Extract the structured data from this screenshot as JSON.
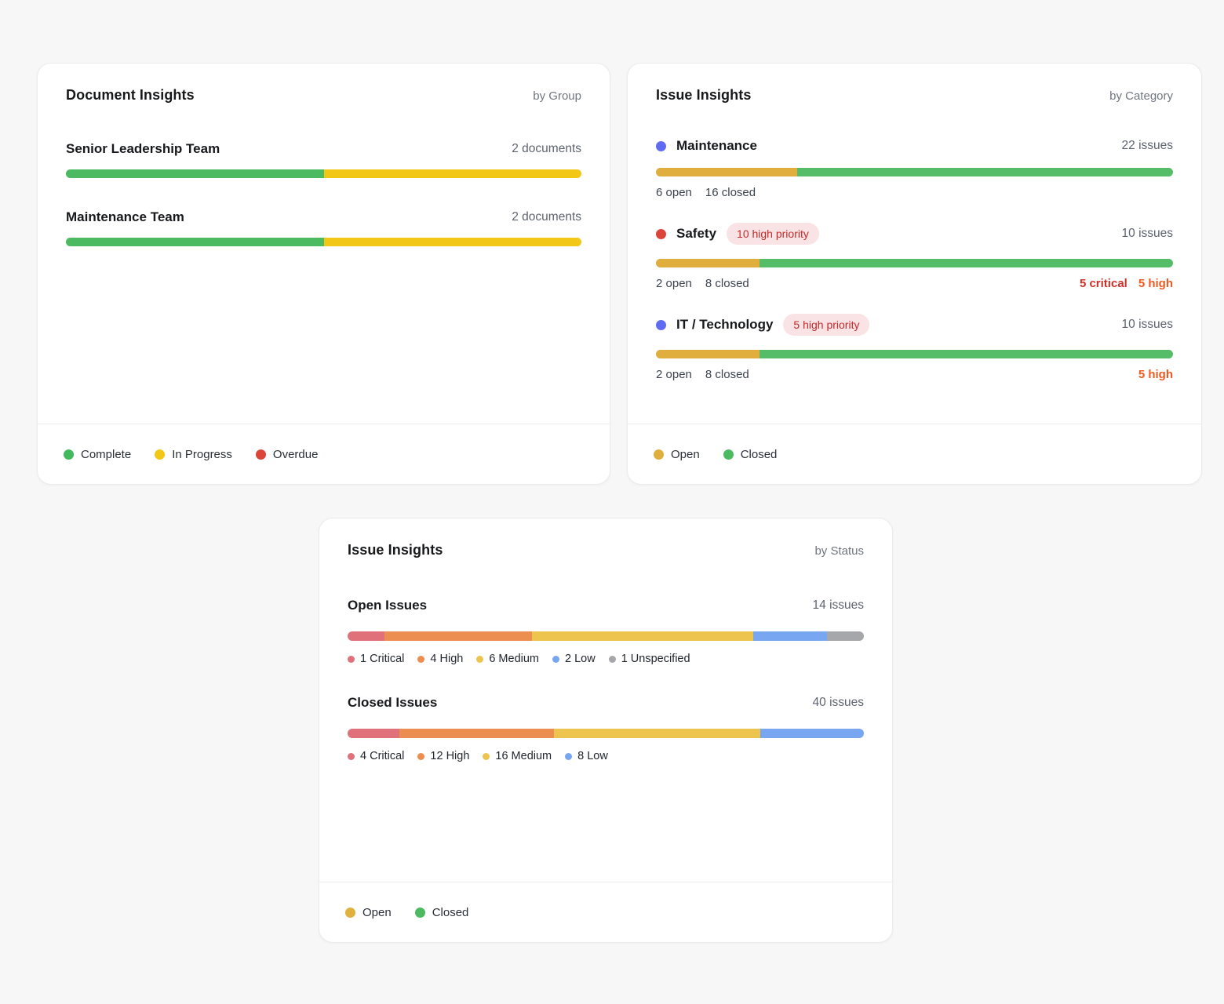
{
  "doc_card": {
    "title": "Document Insights",
    "subtitle": "by Group",
    "rows": [
      {
        "name": "Senior Leadership Team",
        "count": "2 documents",
        "segments": [
          {
            "label": "Complete",
            "color": "#4bba60",
            "pct": 50
          },
          {
            "label": "In Progress",
            "color": "#f2c716",
            "pct": 50
          }
        ]
      },
      {
        "name": "Maintenance Team",
        "count": "2 documents",
        "segments": [
          {
            "label": "Complete",
            "color": "#4bba60",
            "pct": 50
          },
          {
            "label": "In Progress",
            "color": "#f2c716",
            "pct": 50
          }
        ]
      }
    ],
    "legend": [
      {
        "label": "Complete",
        "color": "#41b95c"
      },
      {
        "label": "In Progress",
        "color": "#f2c716"
      },
      {
        "label": "Overdue",
        "color": "#da453a"
      }
    ]
  },
  "category_card": {
    "title": "Issue Insights",
    "subtitle": "by Category",
    "rows": [
      {
        "dot_color": "#5f6cf1",
        "name": "Maintenance",
        "badge": "",
        "count": "22 issues",
        "segments": [
          {
            "label": "Open",
            "color": "#dfae3d",
            "pct": 27.3
          },
          {
            "label": "Closed",
            "color": "#55bd68",
            "pct": 72.7
          }
        ],
        "stats_left": [
          "6 open",
          "16 closed"
        ],
        "stats_right": []
      },
      {
        "dot_color": "#da453a",
        "name": "Safety",
        "badge": "10 high priority",
        "count": "10 issues",
        "segments": [
          {
            "label": "Open",
            "color": "#dfae3d",
            "pct": 20
          },
          {
            "label": "Closed",
            "color": "#55bd68",
            "pct": 80
          }
        ],
        "stats_left": [
          "2 open",
          "8 closed"
        ],
        "stats_right": [
          {
            "text": "5 critical",
            "color": "#d12e28"
          },
          {
            "text": "5 high",
            "color": "#ee5a21"
          }
        ]
      },
      {
        "dot_color": "#5f6cf1",
        "name": "IT / Technology",
        "badge": "5 high priority",
        "count": "10 issues",
        "segments": [
          {
            "label": "Open",
            "color": "#dfae3d",
            "pct": 20
          },
          {
            "label": "Closed",
            "color": "#55bd68",
            "pct": 80
          }
        ],
        "stats_left": [
          "2 open",
          "8 closed"
        ],
        "stats_right": [
          {
            "text": "5 high",
            "color": "#ee5a21"
          }
        ]
      }
    ],
    "legend": [
      {
        "label": "Open",
        "color": "#dfae3d"
      },
      {
        "label": "Closed",
        "color": "#4bba60"
      }
    ]
  },
  "status_card": {
    "title": "Issue Insights",
    "subtitle": "by Status",
    "rows": [
      {
        "name": "Open Issues",
        "count": "14 issues",
        "segments": [
          {
            "label": "1 Critical",
            "color": "#e0707a",
            "pct": 7.14
          },
          {
            "label": "4 High",
            "color": "#ec8e4f",
            "pct": 28.57
          },
          {
            "label": "6 Medium",
            "color": "#ecc44e",
            "pct": 42.86
          },
          {
            "label": "2 Low",
            "color": "#78a6f0",
            "pct": 14.29
          },
          {
            "label": "1 Unspecified",
            "color": "#a6a7aa",
            "pct": 7.14
          }
        ]
      },
      {
        "name": "Closed Issues",
        "count": "40 issues",
        "segments": [
          {
            "label": "4 Critical",
            "color": "#e0707a",
            "pct": 10
          },
          {
            "label": "12 High",
            "color": "#ec8e4f",
            "pct": 30
          },
          {
            "label": "16 Medium",
            "color": "#ecc44e",
            "pct": 40
          },
          {
            "label": "8 Low",
            "color": "#78a6f0",
            "pct": 20
          }
        ]
      }
    ],
    "legend": [
      {
        "label": "Open",
        "color": "#e0b13d"
      },
      {
        "label": "Closed",
        "color": "#4bba60"
      }
    ]
  },
  "chart_data": [
    {
      "type": "bar",
      "title": "Document Insights by Group",
      "categories": [
        "Senior Leadership Team",
        "Maintenance Team"
      ],
      "series": [
        {
          "name": "Complete",
          "values": [
            1,
            1
          ]
        },
        {
          "name": "In Progress",
          "values": [
            1,
            1
          ]
        },
        {
          "name": "Overdue",
          "values": [
            0,
            0
          ]
        }
      ],
      "totals_label": [
        "2 documents",
        "2 documents"
      ],
      "legend_position": "bottom"
    },
    {
      "type": "bar",
      "title": "Issue Insights by Category",
      "categories": [
        "Maintenance",
        "Safety",
        "IT / Technology"
      ],
      "series": [
        {
          "name": "Open",
          "values": [
            6,
            2,
            2
          ]
        },
        {
          "name": "Closed",
          "values": [
            16,
            8,
            8
          ]
        }
      ],
      "totals": [
        22,
        10,
        10
      ],
      "annotations": [
        "",
        "10 high priority; 5 critical, 5 high",
        "5 high priority; 5 high"
      ],
      "legend_position": "bottom"
    },
    {
      "type": "bar",
      "title": "Issue Insights by Status",
      "categories": [
        "Open Issues",
        "Closed Issues"
      ],
      "series": [
        {
          "name": "Critical",
          "values": [
            1,
            4
          ]
        },
        {
          "name": "High",
          "values": [
            4,
            12
          ]
        },
        {
          "name": "Medium",
          "values": [
            6,
            16
          ]
        },
        {
          "name": "Low",
          "values": [
            2,
            8
          ]
        },
        {
          "name": "Unspecified",
          "values": [
            1,
            0
          ]
        }
      ],
      "totals": [
        14,
        40
      ],
      "legend_position": "bottom"
    }
  ]
}
